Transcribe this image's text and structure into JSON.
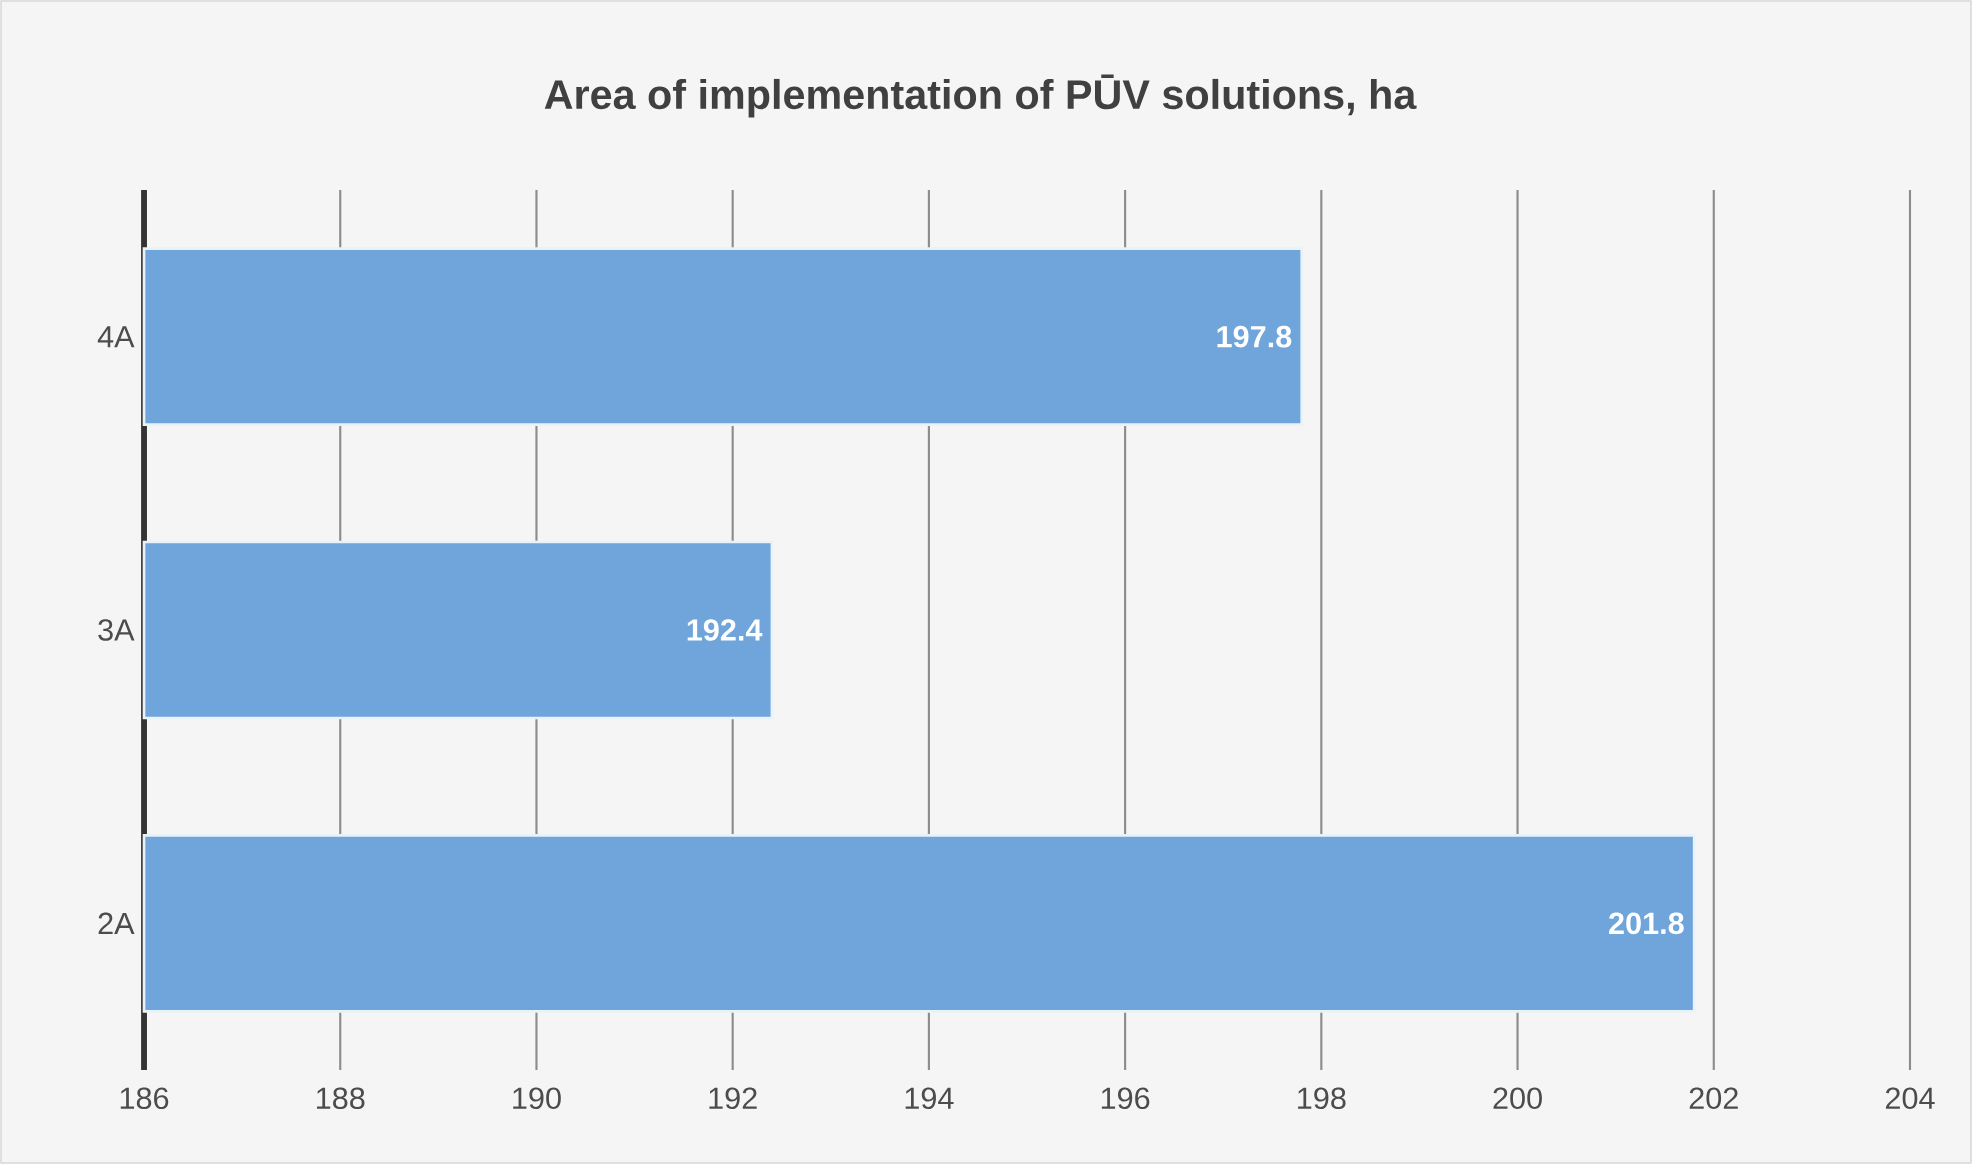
{
  "chart_data": {
    "type": "bar",
    "orientation": "horizontal",
    "title": "Area of implementation of PŪV solutions, ha",
    "categories": [
      "4A",
      "3A",
      "2A"
    ],
    "values": [
      197.8,
      192.4,
      201.8
    ],
    "color": "#6fa5da",
    "xlim": [
      186,
      204
    ],
    "xticks": [
      186,
      188,
      190,
      192,
      194,
      196,
      198,
      200,
      202,
      204
    ],
    "grid": "x",
    "data_labels": true
  }
}
